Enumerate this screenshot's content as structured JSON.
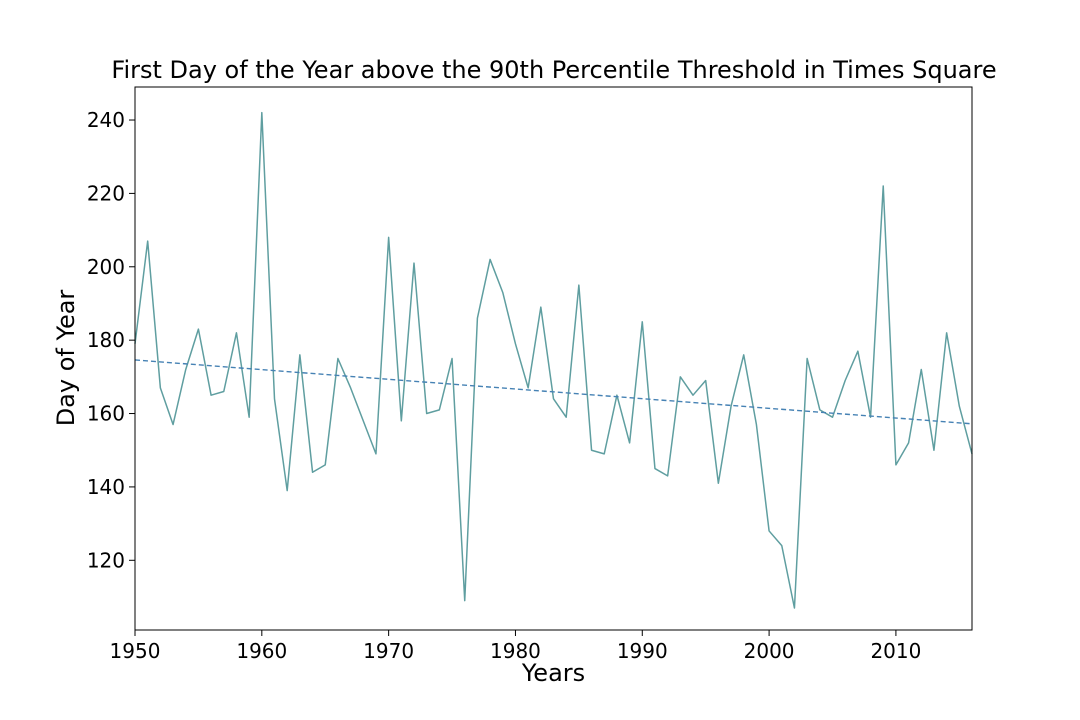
{
  "chart_data": {
    "type": "line",
    "title": "First Day of the Year above the 90th Percentile Threshold in Times Square",
    "xlabel": "Years",
    "ylabel": "Day of Year",
    "xlim": [
      1950,
      2016
    ],
    "ylim": [
      101,
      249
    ],
    "xticks": [
      1950,
      1960,
      1970,
      1980,
      1990,
      2000,
      2010
    ],
    "yticks": [
      120,
      140,
      160,
      180,
      200,
      220,
      240
    ],
    "grid": false,
    "series": [
      {
        "color": "#5f9ea0",
        "style": "solid",
        "x": [
          1950,
          1951,
          1952,
          1953,
          1954,
          1955,
          1956,
          1957,
          1958,
          1959,
          1960,
          1961,
          1962,
          1963,
          1964,
          1965,
          1966,
          1967,
          1968,
          1969,
          1970,
          1971,
          1972,
          1973,
          1974,
          1975,
          1976,
          1977,
          1978,
          1979,
          1980,
          1981,
          1982,
          1983,
          1984,
          1985,
          1986,
          1987,
          1988,
          1989,
          1990,
          1991,
          1992,
          1993,
          1994,
          1995,
          1996,
          1997,
          1998,
          1999,
          2000,
          2001,
          2002,
          2003,
          2004,
          2005,
          2006,
          2007,
          2008,
          2009,
          2010,
          2011,
          2012,
          2013,
          2014,
          2015,
          2016
        ],
        "y": [
          179,
          207,
          167,
          157,
          172,
          183,
          165,
          166,
          182,
          159,
          242,
          164,
          139,
          176,
          144,
          146,
          175,
          167,
          158,
          149,
          208,
          158,
          201,
          160,
          161,
          175,
          109,
          186,
          202,
          193,
          179,
          167,
          189,
          164,
          159,
          195,
          150,
          149,
          165,
          152,
          185,
          145,
          143,
          170,
          165,
          169,
          141,
          162,
          176,
          157,
          128,
          124,
          107,
          175,
          161,
          159,
          169,
          177,
          159,
          222,
          146,
          152,
          172,
          150,
          182,
          162,
          149
        ]
      },
      {
        "color": "#4682b4",
        "style": "dashed",
        "x": [
          1950,
          2016
        ],
        "y": [
          174.6,
          157.2
        ]
      }
    ]
  }
}
